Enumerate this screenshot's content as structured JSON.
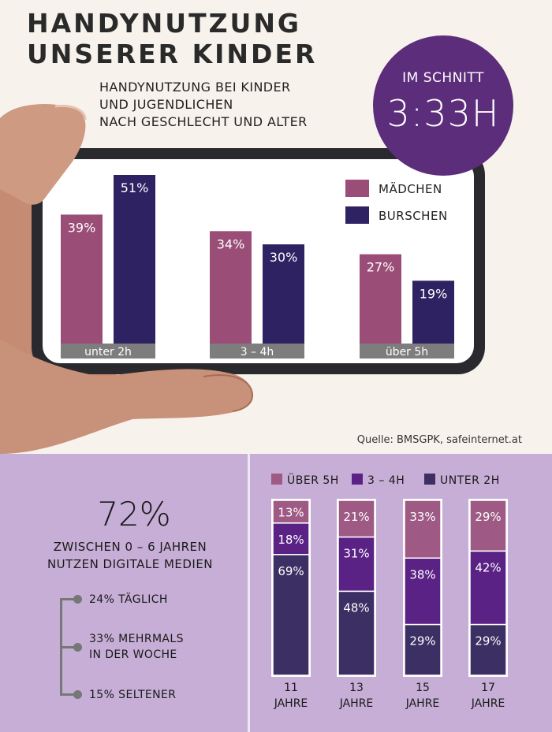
{
  "header": {
    "title_line1": "HANDYNUTZUNG",
    "title_line2": "UNSERER KINDER",
    "subtitle_line1": "HANDYNUTZUNG BEI KINDER",
    "subtitle_line2": "UND JUGENDLICHEN",
    "subtitle_line3": "NACH GESCHLECHT UND ALTER"
  },
  "badge": {
    "line1": "IM SCHNITT",
    "line2": "3:33H"
  },
  "source": "Quelle: BMSGPK, safeinternet.at",
  "colors": {
    "maedchen": "#9a4d76",
    "burschen": "#2e2263",
    "over5h": "#9e5a84",
    "h3_4": "#5b2285",
    "under2h": "#3b2f63",
    "badge": "#5c2d7a",
    "panel": "#c6aed6"
  },
  "chart_data": [
    {
      "type": "bar",
      "categories": [
        "unter 2h",
        "3 – 4h",
        "über 5h"
      ],
      "series": [
        {
          "name": "MÄDCHEN",
          "values": [
            39,
            34,
            27
          ]
        },
        {
          "name": "BURSCHEN",
          "values": [
            51,
            30,
            19
          ]
        }
      ],
      "ylim": [
        0,
        55
      ],
      "legend": "top-right",
      "value_suffix": "%"
    },
    {
      "type": "bar",
      "stacked": true,
      "categories": [
        "11 JAHRE",
        "13 JAHRE",
        "15 JAHRE",
        "17 JAHRE"
      ],
      "series": [
        {
          "name": "ÜBER 5H",
          "values": [
            13,
            21,
            33,
            29
          ]
        },
        {
          "name": "3 – 4H",
          "values": [
            18,
            31,
            38,
            42
          ]
        },
        {
          "name": "UNTER 2H",
          "values": [
            69,
            48,
            29,
            29
          ]
        }
      ],
      "legend": "top",
      "value_suffix": "%"
    }
  ],
  "digital": {
    "big_value": "72%",
    "line1": "ZWISCHEN 0 – 6 JAHREN",
    "line2": "NUTZEN DIGITALE MEDIEN",
    "items": [
      {
        "line1": "24% TÄGLICH",
        "line2": ""
      },
      {
        "line1": "33% MEHRMALS",
        "line2": "IN DER WOCHE"
      },
      {
        "line1": "15% SELTENER",
        "line2": ""
      }
    ]
  }
}
